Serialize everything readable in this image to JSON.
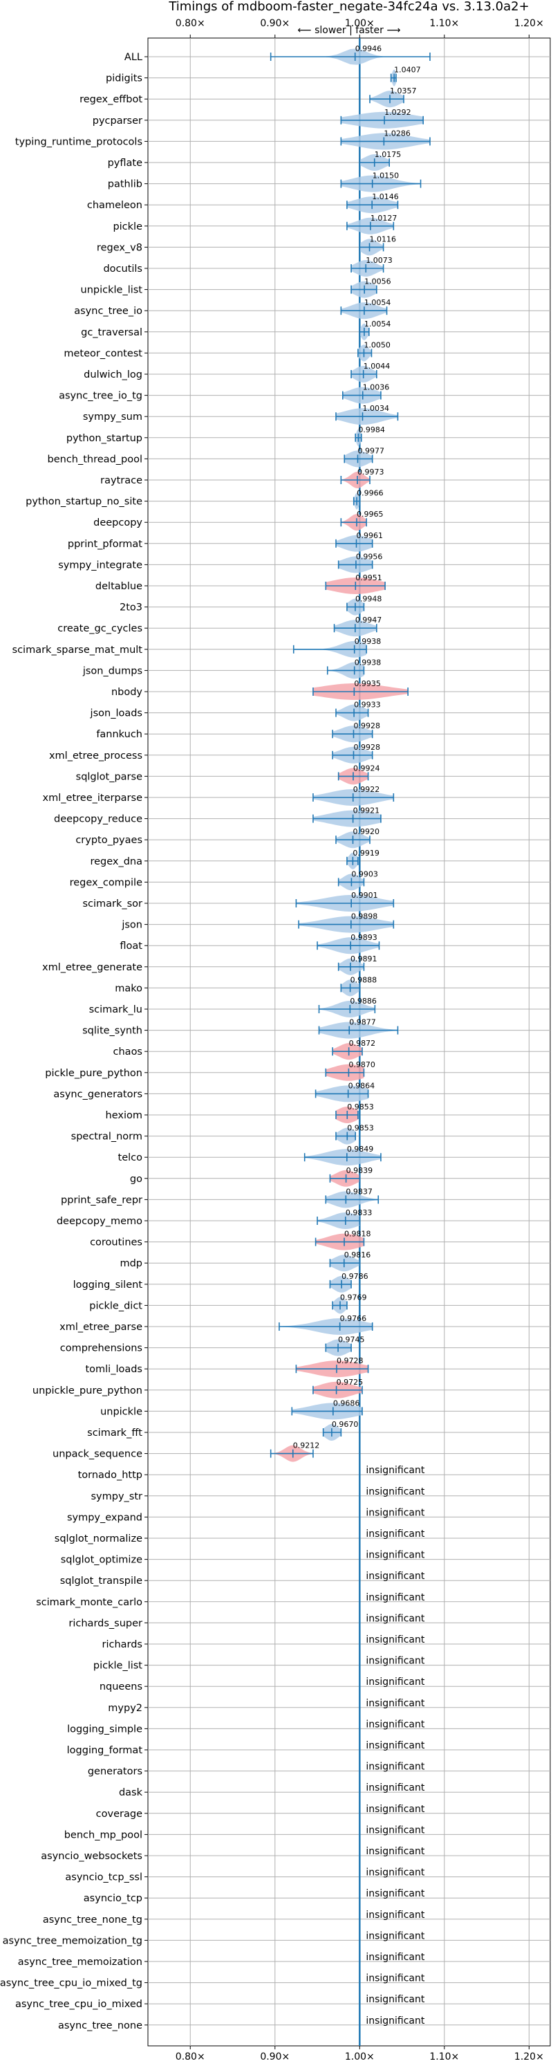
{
  "chart_data": {
    "type": "violin",
    "title": "Timings of mdboom-faster_negate-34fc24a vs. 3.13.0a2+",
    "direction_label": "⟵ slower | faster ⟶",
    "xlim": [
      0.75,
      1.225
    ],
    "xticks": [
      0.8,
      0.9,
      1.0,
      1.1,
      1.2
    ],
    "xtick_labels": [
      "0.80×",
      "0.90×",
      "1.00×",
      "1.10×",
      "1.20×"
    ],
    "reference_line": 1.0,
    "grid": true,
    "colors": {
      "faster": "#aecbe8",
      "slower": "#f4a6ac",
      "line": "#1f77b4",
      "grid": "#b0b0b0"
    },
    "insignificant_label": "insignificant",
    "benchmarks": [
      {
        "name": "ALL",
        "value": 0.9946,
        "label": "0.9946",
        "kind": "faster",
        "lo": 0.895,
        "hi": 1.083,
        "spread": 0.017
      },
      {
        "name": "pidigits",
        "value": 1.0407,
        "label": "1.0407",
        "kind": "faster",
        "lo": 1.037,
        "hi": 1.043,
        "spread": 0.003
      },
      {
        "name": "regex_effbot",
        "value": 1.0357,
        "label": "1.0357",
        "kind": "faster",
        "lo": 1.012,
        "hi": 1.052,
        "spread": 0.015
      },
      {
        "name": "pycparser",
        "value": 1.0292,
        "label": "1.0292",
        "kind": "faster",
        "lo": 0.978,
        "hi": 1.075,
        "spread": 0.045
      },
      {
        "name": "typing_runtime_protocols",
        "value": 1.0286,
        "label": "1.0286",
        "kind": "faster",
        "lo": 0.978,
        "hi": 1.083,
        "spread": 0.04
      },
      {
        "name": "pyflate",
        "value": 1.0175,
        "label": "1.0175",
        "kind": "faster",
        "lo": 1.0,
        "hi": 1.035,
        "spread": 0.015
      },
      {
        "name": "pathlib",
        "value": 1.015,
        "label": "1.0150",
        "kind": "faster",
        "lo": 0.978,
        "hi": 1.072,
        "spread": 0.03
      },
      {
        "name": "chameleon",
        "value": 1.0146,
        "label": "1.0146",
        "kind": "faster",
        "lo": 0.985,
        "hi": 1.045,
        "spread": 0.025
      },
      {
        "name": "pickle",
        "value": 1.0127,
        "label": "1.0127",
        "kind": "faster",
        "lo": 0.985,
        "hi": 1.04,
        "spread": 0.02
      },
      {
        "name": "regex_v8",
        "value": 1.0116,
        "label": "1.0116",
        "kind": "faster",
        "lo": 1.0,
        "hi": 1.028,
        "spread": 0.012
      },
      {
        "name": "docutils",
        "value": 1.0073,
        "label": "1.0073",
        "kind": "faster",
        "lo": 0.99,
        "hi": 1.028,
        "spread": 0.015
      },
      {
        "name": "unpickle_list",
        "value": 1.0056,
        "label": "1.0056",
        "kind": "faster",
        "lo": 0.99,
        "hi": 1.02,
        "spread": 0.015
      },
      {
        "name": "async_tree_io",
        "value": 1.0054,
        "label": "1.0054",
        "kind": "faster",
        "lo": 0.978,
        "hi": 1.032,
        "spread": 0.02
      },
      {
        "name": "gc_traversal",
        "value": 1.0054,
        "label": "1.0054",
        "kind": "faster",
        "lo": 1.0,
        "hi": 1.011,
        "spread": 0.005
      },
      {
        "name": "meteor_contest",
        "value": 1.005,
        "label": "1.0050",
        "kind": "faster",
        "lo": 0.998,
        "hi": 1.014,
        "spread": 0.007
      },
      {
        "name": "dulwich_log",
        "value": 1.0044,
        "label": "1.0044",
        "kind": "faster",
        "lo": 0.99,
        "hi": 1.02,
        "spread": 0.013
      },
      {
        "name": "async_tree_io_tg",
        "value": 1.0036,
        "label": "1.0036",
        "kind": "faster",
        "lo": 0.98,
        "hi": 1.025,
        "spread": 0.02
      },
      {
        "name": "sympy_sum",
        "value": 1.0034,
        "label": "1.0034",
        "kind": "faster",
        "lo": 0.972,
        "hi": 1.045,
        "spread": 0.028
      },
      {
        "name": "python_startup",
        "value": 0.9984,
        "label": "0.9984",
        "kind": "faster",
        "lo": 0.995,
        "hi": 1.002,
        "spread": 0.003
      },
      {
        "name": "bench_thread_pool",
        "value": 0.9977,
        "label": "0.9977",
        "kind": "faster",
        "lo": 0.982,
        "hi": 1.015,
        "spread": 0.015
      },
      {
        "name": "raytrace",
        "value": 0.9973,
        "label": "0.9973",
        "kind": "slower",
        "lo": 0.978,
        "hi": 1.012,
        "spread": 0.01
      },
      {
        "name": "python_startup_no_site",
        "value": 0.9966,
        "label": "0.9966",
        "kind": "faster",
        "lo": 0.993,
        "hi": 1.0,
        "spread": 0.003
      },
      {
        "name": "deepcopy",
        "value": 0.9965,
        "label": "0.9965",
        "kind": "slower",
        "lo": 0.978,
        "hi": 1.008,
        "spread": 0.01
      },
      {
        "name": "pprint_pformat",
        "value": 0.9961,
        "label": "0.9961",
        "kind": "faster",
        "lo": 0.972,
        "hi": 1.015,
        "spread": 0.02
      },
      {
        "name": "sympy_integrate",
        "value": 0.9956,
        "label": "0.9956",
        "kind": "faster",
        "lo": 0.975,
        "hi": 1.015,
        "spread": 0.02
      },
      {
        "name": "deltablue",
        "value": 0.9951,
        "label": "0.9951",
        "kind": "slower",
        "lo": 0.96,
        "hi": 1.03,
        "spread": 0.035
      },
      {
        "name": "2to3",
        "value": 0.9948,
        "label": "0.9948",
        "kind": "faster",
        "lo": 0.985,
        "hi": 1.005,
        "spread": 0.01
      },
      {
        "name": "create_gc_cycles",
        "value": 0.9947,
        "label": "0.9947",
        "kind": "faster",
        "lo": 0.97,
        "hi": 1.02,
        "spread": 0.02
      },
      {
        "name": "scimark_sparse_mat_mult",
        "value": 0.9938,
        "label": "0.9938",
        "kind": "faster",
        "lo": 0.922,
        "hi": 1.008,
        "spread": 0.02
      },
      {
        "name": "json_dumps",
        "value": 0.9938,
        "label": "0.9938",
        "kind": "faster",
        "lo": 0.962,
        "hi": 1.005,
        "spread": 0.015
      },
      {
        "name": "nbody",
        "value": 0.9935,
        "label": "0.9935",
        "kind": "slower",
        "lo": 0.945,
        "hi": 1.057,
        "spread": 0.05
      },
      {
        "name": "json_loads",
        "value": 0.9933,
        "label": "0.9933",
        "kind": "faster",
        "lo": 0.972,
        "hi": 1.01,
        "spread": 0.015
      },
      {
        "name": "fannkuch",
        "value": 0.9928,
        "label": "0.9928",
        "kind": "faster",
        "lo": 0.968,
        "hi": 1.015,
        "spread": 0.02
      },
      {
        "name": "xml_etree_process",
        "value": 0.9928,
        "label": "0.9928",
        "kind": "faster",
        "lo": 0.968,
        "hi": 1.015,
        "spread": 0.02
      },
      {
        "name": "sqlglot_parse",
        "value": 0.9924,
        "label": "0.9924",
        "kind": "slower",
        "lo": 0.975,
        "hi": 1.01,
        "spread": 0.015
      },
      {
        "name": "xml_etree_iterparse",
        "value": 0.9922,
        "label": "0.9922",
        "kind": "faster",
        "lo": 0.945,
        "hi": 1.04,
        "spread": 0.035
      },
      {
        "name": "deepcopy_reduce",
        "value": 0.9921,
        "label": "0.9921",
        "kind": "faster",
        "lo": 0.945,
        "hi": 1.025,
        "spread": 0.035
      },
      {
        "name": "crypto_pyaes",
        "value": 0.992,
        "label": "0.9920",
        "kind": "faster",
        "lo": 0.972,
        "hi": 1.012,
        "spread": 0.015
      },
      {
        "name": "regex_dna",
        "value": 0.9919,
        "label": "0.9919",
        "kind": "faster",
        "lo": 0.985,
        "hi": 0.998,
        "spread": 0.006
      },
      {
        "name": "regex_compile",
        "value": 0.9903,
        "label": "0.9903",
        "kind": "faster",
        "lo": 0.975,
        "hi": 1.005,
        "spread": 0.012
      },
      {
        "name": "scimark_sor",
        "value": 0.9901,
        "label": "0.9901",
        "kind": "faster",
        "lo": 0.925,
        "hi": 1.04,
        "spread": 0.04
      },
      {
        "name": "json",
        "value": 0.9898,
        "label": "0.9898",
        "kind": "faster",
        "lo": 0.928,
        "hi": 1.04,
        "spread": 0.04
      },
      {
        "name": "float",
        "value": 0.9893,
        "label": "0.9893",
        "kind": "faster",
        "lo": 0.95,
        "hi": 1.023,
        "spread": 0.025
      },
      {
        "name": "xml_etree_generate",
        "value": 0.9891,
        "label": "0.9891",
        "kind": "faster",
        "lo": 0.975,
        "hi": 1.005,
        "spread": 0.012
      },
      {
        "name": "mako",
        "value": 0.9888,
        "label": "0.9888",
        "kind": "faster",
        "lo": 0.978,
        "hi": 1.0,
        "spread": 0.01
      },
      {
        "name": "scimark_lu",
        "value": 0.9886,
        "label": "0.9886",
        "kind": "faster",
        "lo": 0.952,
        "hi": 1.018,
        "spread": 0.02
      },
      {
        "name": "sqlite_synth",
        "value": 0.9877,
        "label": "0.9877",
        "kind": "faster",
        "lo": 0.952,
        "hi": 1.045,
        "spread": 0.03
      },
      {
        "name": "chaos",
        "value": 0.9872,
        "label": "0.9872",
        "kind": "slower",
        "lo": 0.968,
        "hi": 1.003,
        "spread": 0.015
      },
      {
        "name": "pickle_pure_python",
        "value": 0.987,
        "label": "0.9870",
        "kind": "slower",
        "lo": 0.96,
        "hi": 1.005,
        "spread": 0.025
      },
      {
        "name": "async_generators",
        "value": 0.9864,
        "label": "0.9864",
        "kind": "faster",
        "lo": 0.948,
        "hi": 1.01,
        "spread": 0.03
      },
      {
        "name": "hexiom",
        "value": 0.9853,
        "label": "0.9853",
        "kind": "slower",
        "lo": 0.972,
        "hi": 0.998,
        "spread": 0.015
      },
      {
        "name": "spectral_norm",
        "value": 0.9853,
        "label": "0.9853",
        "kind": "faster",
        "lo": 0.972,
        "hi": 0.995,
        "spread": 0.012
      },
      {
        "name": "telco",
        "value": 0.9849,
        "label": "0.9849",
        "kind": "faster",
        "lo": 0.935,
        "hi": 1.025,
        "spread": 0.03
      },
      {
        "name": "go",
        "value": 0.9839,
        "label": "0.9839",
        "kind": "slower",
        "lo": 0.965,
        "hi": 1.0,
        "spread": 0.015
      },
      {
        "name": "pprint_safe_repr",
        "value": 0.9837,
        "label": "0.9837",
        "kind": "faster",
        "lo": 0.96,
        "hi": 1.022,
        "spread": 0.02
      },
      {
        "name": "deepcopy_memo",
        "value": 0.9833,
        "label": "0.9833",
        "kind": "faster",
        "lo": 0.95,
        "hi": 1.0,
        "spread": 0.02
      },
      {
        "name": "coroutines",
        "value": 0.9818,
        "label": "0.9818",
        "kind": "slower",
        "lo": 0.948,
        "hi": 1.005,
        "spread": 0.025
      },
      {
        "name": "mdp",
        "value": 0.9816,
        "label": "0.9816",
        "kind": "faster",
        "lo": 0.965,
        "hi": 1.0,
        "spread": 0.015
      },
      {
        "name": "logging_silent",
        "value": 0.9786,
        "label": "0.9786",
        "kind": "faster",
        "lo": 0.965,
        "hi": 0.99,
        "spread": 0.012
      },
      {
        "name": "pickle_dict",
        "value": 0.9769,
        "label": "0.9769",
        "kind": "faster",
        "lo": 0.968,
        "hi": 0.985,
        "spread": 0.008
      },
      {
        "name": "xml_etree_parse",
        "value": 0.9766,
        "label": "0.9766",
        "kind": "faster",
        "lo": 0.905,
        "hi": 1.015,
        "spread": 0.035
      },
      {
        "name": "comprehensions",
        "value": 0.9745,
        "label": "0.9745",
        "kind": "faster",
        "lo": 0.96,
        "hi": 0.99,
        "spread": 0.015
      },
      {
        "name": "tomli_loads",
        "value": 0.9728,
        "label": "0.9728",
        "kind": "slower",
        "lo": 0.925,
        "hi": 1.01,
        "spread": 0.035
      },
      {
        "name": "unpickle_pure_python",
        "value": 0.9725,
        "label": "0.9725",
        "kind": "slower",
        "lo": 0.945,
        "hi": 1.003,
        "spread": 0.025
      },
      {
        "name": "unpickle",
        "value": 0.9686,
        "label": "0.9686",
        "kind": "faster",
        "lo": 0.92,
        "hi": 1.003,
        "spread": 0.035
      },
      {
        "name": "scimark_fft",
        "value": 0.967,
        "label": "0.9670",
        "kind": "faster",
        "lo": 0.957,
        "hi": 0.978,
        "spread": 0.01
      },
      {
        "name": "unpack_sequence",
        "value": 0.9212,
        "label": "0.9212",
        "kind": "slower",
        "lo": 0.895,
        "hi": 0.945,
        "spread": 0.012
      },
      {
        "name": "tornado_http",
        "kind": "insignificant"
      },
      {
        "name": "sympy_str",
        "kind": "insignificant"
      },
      {
        "name": "sympy_expand",
        "kind": "insignificant"
      },
      {
        "name": "sqlglot_normalize",
        "kind": "insignificant"
      },
      {
        "name": "sqlglot_optimize",
        "kind": "insignificant"
      },
      {
        "name": "sqlglot_transpile",
        "kind": "insignificant"
      },
      {
        "name": "scimark_monte_carlo",
        "kind": "insignificant"
      },
      {
        "name": "richards_super",
        "kind": "insignificant"
      },
      {
        "name": "richards",
        "kind": "insignificant"
      },
      {
        "name": "pickle_list",
        "kind": "insignificant"
      },
      {
        "name": "nqueens",
        "kind": "insignificant"
      },
      {
        "name": "mypy2",
        "kind": "insignificant"
      },
      {
        "name": "logging_simple",
        "kind": "insignificant"
      },
      {
        "name": "logging_format",
        "kind": "insignificant"
      },
      {
        "name": "generators",
        "kind": "insignificant"
      },
      {
        "name": "dask",
        "kind": "insignificant"
      },
      {
        "name": "coverage",
        "kind": "insignificant"
      },
      {
        "name": "bench_mp_pool",
        "kind": "insignificant"
      },
      {
        "name": "asyncio_websockets",
        "kind": "insignificant"
      },
      {
        "name": "asyncio_tcp_ssl",
        "kind": "insignificant"
      },
      {
        "name": "asyncio_tcp",
        "kind": "insignificant"
      },
      {
        "name": "async_tree_none_tg",
        "kind": "insignificant"
      },
      {
        "name": "async_tree_memoization_tg",
        "kind": "insignificant"
      },
      {
        "name": "async_tree_memoization",
        "kind": "insignificant"
      },
      {
        "name": "async_tree_cpu_io_mixed_tg",
        "kind": "insignificant"
      },
      {
        "name": "async_tree_cpu_io_mixed",
        "kind": "insignificant"
      },
      {
        "name": "async_tree_none",
        "kind": "insignificant"
      }
    ]
  }
}
